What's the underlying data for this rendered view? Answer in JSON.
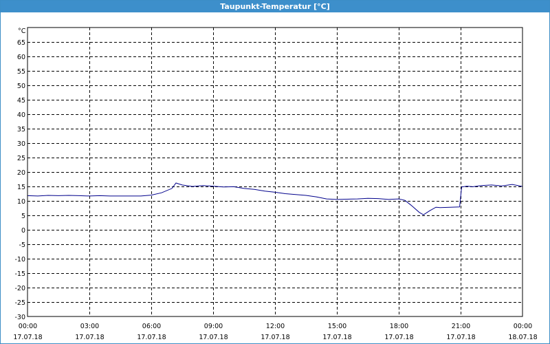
{
  "window": {
    "title": "Taupunkt-Temperatur [°C]"
  },
  "chart_data": {
    "type": "line",
    "title": "Taupunkt-Temperatur [°C]",
    "ylabel": "°C",
    "xlabel": "",
    "ylim": [
      -30,
      70
    ],
    "y_ticks": [
      65,
      60,
      55,
      50,
      45,
      40,
      35,
      30,
      25,
      20,
      15,
      10,
      5,
      0,
      -5,
      -10,
      -15,
      -20,
      -25,
      -30
    ],
    "x_range_hours": [
      0,
      24
    ],
    "x_ticks": [
      {
        "time": "00:00",
        "date": "17.07.18"
      },
      {
        "time": "03:00",
        "date": "17.07.18"
      },
      {
        "time": "06:00",
        "date": "17.07.18"
      },
      {
        "time": "09:00",
        "date": "17.07.18"
      },
      {
        "time": "12:00",
        "date": "17.07.18"
      },
      {
        "time": "15:00",
        "date": "17.07.18"
      },
      {
        "time": "18:00",
        "date": "17.07.18"
      },
      {
        "time": "21:00",
        "date": "17.07.18"
      },
      {
        "time": "00:00",
        "date": "18.07.18"
      }
    ],
    "grid": true,
    "series": [
      {
        "color": "#00008b",
        "points": [
          [
            0.0,
            11.8
          ],
          [
            0.5,
            11.7
          ],
          [
            1.0,
            11.9
          ],
          [
            1.5,
            11.8
          ],
          [
            2.0,
            11.9
          ],
          [
            2.5,
            11.8
          ],
          [
            3.0,
            11.7
          ],
          [
            3.5,
            11.8
          ],
          [
            4.0,
            11.7
          ],
          [
            4.5,
            11.7
          ],
          [
            5.0,
            11.7
          ],
          [
            5.5,
            11.7
          ],
          [
            6.0,
            12.0
          ],
          [
            6.5,
            12.8
          ],
          [
            7.0,
            14.3
          ],
          [
            7.2,
            16.2
          ],
          [
            7.5,
            15.5
          ],
          [
            8.0,
            15.0
          ],
          [
            8.5,
            15.3
          ],
          [
            9.0,
            15.1
          ],
          [
            9.5,
            14.8
          ],
          [
            10.0,
            14.9
          ],
          [
            10.5,
            14.3
          ],
          [
            11.0,
            14.0
          ],
          [
            11.5,
            13.4
          ],
          [
            12.0,
            13.0
          ],
          [
            12.5,
            12.5
          ],
          [
            13.0,
            12.2
          ],
          [
            13.5,
            11.9
          ],
          [
            14.0,
            11.4
          ],
          [
            14.5,
            10.7
          ],
          [
            15.0,
            10.5
          ],
          [
            15.5,
            10.6
          ],
          [
            16.0,
            10.7
          ],
          [
            16.5,
            10.9
          ],
          [
            17.0,
            10.8
          ],
          [
            17.5,
            10.5
          ],
          [
            18.0,
            10.7
          ],
          [
            18.3,
            10.2
          ],
          [
            18.6,
            8.5
          ],
          [
            19.0,
            6.0
          ],
          [
            19.2,
            5.2
          ],
          [
            19.5,
            6.6
          ],
          [
            19.8,
            7.8
          ],
          [
            20.0,
            7.7
          ],
          [
            20.5,
            7.8
          ],
          [
            20.95,
            7.9
          ],
          [
            21.05,
            14.8
          ],
          [
            21.3,
            15.1
          ],
          [
            21.6,
            14.9
          ],
          [
            22.0,
            15.3
          ],
          [
            22.5,
            15.5
          ],
          [
            23.0,
            15.2
          ],
          [
            23.5,
            15.7
          ],
          [
            24.0,
            15.0
          ]
        ]
      }
    ]
  }
}
